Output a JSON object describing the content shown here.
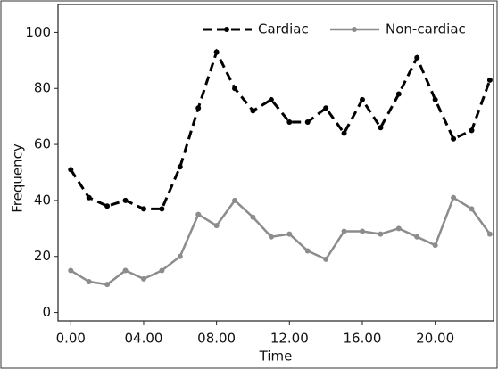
{
  "chart_data": {
    "type": "line",
    "x_label": "Time",
    "y_label": "Frequency",
    "x": [
      0,
      1,
      2,
      3,
      4,
      5,
      6,
      7,
      8,
      9,
      10,
      11,
      12,
      13,
      14,
      15,
      16,
      17,
      18,
      19,
      20,
      21,
      22,
      23
    ],
    "series": [
      {
        "name": "Cardiac",
        "color": "#000000",
        "linestyle": "dashed",
        "values": [
          51,
          41,
          38,
          40,
          37,
          37,
          52,
          73,
          93,
          80,
          72,
          76,
          68,
          68,
          73,
          64,
          76,
          66,
          78,
          91,
          76,
          62,
          65,
          83
        ]
      },
      {
        "name": "Non-cardiac",
        "color": "#8c8c8c",
        "linestyle": "solid",
        "values": [
          15,
          11,
          10,
          15,
          12,
          15,
          20,
          35,
          31,
          40,
          34,
          27,
          28,
          22,
          19,
          29,
          29,
          28,
          30,
          27,
          24,
          41,
          37,
          28
        ]
      }
    ],
    "xlim": [
      -0.7,
      23.2
    ],
    "xticks": [
      {
        "value": 0,
        "label": "0.00"
      },
      {
        "value": 4,
        "label": "04.00"
      },
      {
        "value": 8,
        "label": "08.00"
      },
      {
        "value": 12,
        "label": "12.00"
      },
      {
        "value": 16,
        "label": "16.00"
      },
      {
        "value": 20,
        "label": "20.00"
      }
    ],
    "ylim": [
      -3,
      110
    ],
    "yticks": [
      0,
      20,
      40,
      60,
      80,
      100
    ],
    "legend": "top-right",
    "grid": false
  }
}
